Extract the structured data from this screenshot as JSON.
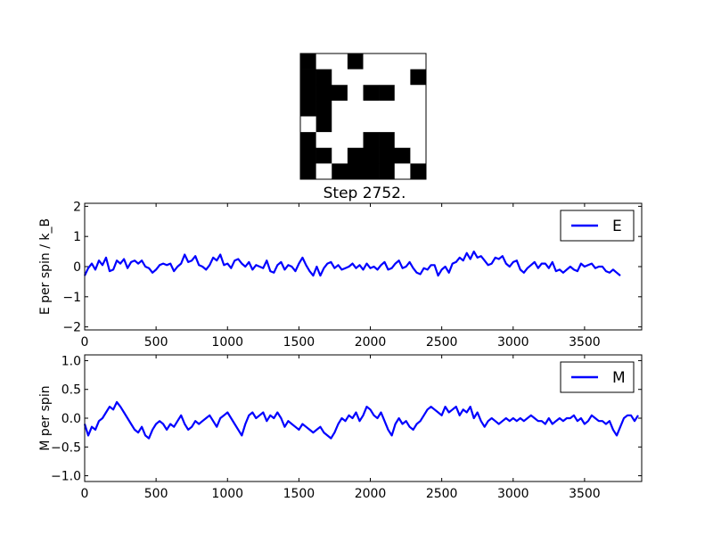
{
  "title": "Step 2752.",
  "spin_grid": {
    "rows": 8,
    "cols": 8,
    "colors": {
      "up": "#ffffff",
      "down": "#000000"
    },
    "cells": [
      [
        1,
        0,
        0,
        1,
        0,
        0,
        0,
        0
      ],
      [
        1,
        1,
        0,
        0,
        0,
        0,
        0,
        1
      ],
      [
        1,
        1,
        1,
        0,
        1,
        1,
        0,
        0
      ],
      [
        1,
        1,
        0,
        0,
        0,
        0,
        0,
        0
      ],
      [
        0,
        1,
        0,
        0,
        0,
        0,
        0,
        0
      ],
      [
        1,
        0,
        0,
        0,
        1,
        1,
        0,
        0
      ],
      [
        1,
        1,
        0,
        1,
        1,
        1,
        1,
        0
      ],
      [
        1,
        0,
        1,
        1,
        1,
        1,
        0,
        1
      ]
    ]
  },
  "chart_data": [
    {
      "type": "line",
      "ylabel": "E per spin / k_B",
      "xlim": [
        0,
        3900
      ],
      "ylim": [
        -2.1,
        2.1
      ],
      "xticks": [
        "0",
        "500",
        "1000",
        "1500",
        "2000",
        "2500",
        "3000",
        "3500"
      ],
      "yticks": [
        "−2",
        "−1",
        "0",
        "1",
        "2"
      ],
      "legend_position": "top-right",
      "series": [
        {
          "name": "E",
          "color": "#0000ff",
          "x_step": 25,
          "values": [
            -0.3,
            -0.05,
            0.1,
            -0.1,
            0.2,
            0.05,
            0.3,
            -0.15,
            -0.1,
            0.2,
            0.1,
            0.25,
            -0.05,
            0.15,
            0.2,
            0.1,
            0.2,
            0.0,
            -0.05,
            -0.2,
            -0.1,
            0.05,
            0.1,
            0.05,
            0.1,
            -0.15,
            0.0,
            0.1,
            0.4,
            0.15,
            0.2,
            0.35,
            0.05,
            0.0,
            -0.1,
            0.05,
            0.3,
            0.2,
            0.4,
            0.05,
            0.1,
            -0.05,
            0.2,
            0.25,
            0.1,
            0.0,
            0.15,
            -0.1,
            0.05,
            0.0,
            -0.05,
            0.2,
            -0.15,
            -0.2,
            0.05,
            0.15,
            -0.1,
            0.05,
            0.0,
            -0.15,
            0.1,
            0.3,
            0.05,
            -0.15,
            -0.3,
            0.0,
            -0.3,
            -0.05,
            0.1,
            0.15,
            -0.05,
            0.05,
            -0.1,
            -0.05,
            0.0,
            0.1,
            -0.05,
            0.05,
            -0.1,
            0.1,
            -0.05,
            0.0,
            -0.1,
            0.05,
            0.15,
            -0.1,
            -0.05,
            0.1,
            0.2,
            -0.05,
            0.0,
            0.15,
            -0.05,
            -0.2,
            -0.25,
            -0.05,
            -0.1,
            0.05,
            0.05,
            -0.3,
            -0.1,
            0.0,
            -0.2,
            0.1,
            0.15,
            0.3,
            0.2,
            0.45,
            0.25,
            0.5,
            0.3,
            0.35,
            0.2,
            0.05,
            0.1,
            0.3,
            0.25,
            0.35,
            0.1,
            0.0,
            0.15,
            0.2,
            -0.1,
            -0.2,
            -0.05,
            0.05,
            0.15,
            -0.05,
            0.1,
            0.1,
            -0.05,
            0.15,
            -0.15,
            -0.1,
            -0.2,
            -0.1,
            0.0,
            -0.1,
            -0.15,
            0.1,
            0.0,
            0.05,
            0.1,
            -0.05,
            0.0,
            0.0,
            -0.15,
            -0.2,
            -0.1,
            -0.2,
            -0.3
          ]
        }
      ]
    },
    {
      "type": "line",
      "ylabel": "M per spin",
      "xlim": [
        0,
        3900
      ],
      "ylim": [
        -1.1,
        1.1
      ],
      "xticks": [
        "0",
        "500",
        "1000",
        "1500",
        "2000",
        "2500",
        "3000",
        "3500"
      ],
      "yticks": [
        "−1.0",
        "−0.5",
        "0.0",
        "0.5",
        "1.0"
      ],
      "legend_position": "top-right",
      "series": [
        {
          "name": "M",
          "color": "#0000ff",
          "x_step": 25,
          "values": [
            -0.1,
            -0.3,
            -0.15,
            -0.2,
            -0.05,
            0.0,
            0.1,
            0.2,
            0.15,
            0.28,
            0.2,
            0.1,
            0.0,
            -0.1,
            -0.2,
            -0.25,
            -0.15,
            -0.3,
            -0.35,
            -0.2,
            -0.1,
            -0.05,
            -0.1,
            -0.2,
            -0.1,
            -0.15,
            -0.05,
            0.05,
            -0.1,
            -0.2,
            -0.15,
            -0.05,
            -0.1,
            -0.05,
            0.0,
            0.05,
            -0.05,
            -0.15,
            0.0,
            0.05,
            0.1,
            0.0,
            -0.1,
            -0.2,
            -0.3,
            -0.1,
            0.05,
            0.1,
            0.0,
            0.05,
            0.1,
            -0.05,
            0.05,
            0.0,
            0.1,
            0.0,
            -0.15,
            -0.05,
            -0.1,
            -0.15,
            -0.2,
            -0.1,
            -0.15,
            -0.2,
            -0.25,
            -0.2,
            -0.15,
            -0.25,
            -0.3,
            -0.35,
            -0.25,
            -0.1,
            0.0,
            -0.05,
            0.05,
            0.0,
            0.1,
            -0.05,
            0.05,
            0.2,
            0.15,
            0.05,
            0.0,
            0.1,
            -0.05,
            -0.2,
            -0.3,
            -0.1,
            0.0,
            -0.1,
            -0.05,
            -0.15,
            -0.2,
            -0.1,
            -0.05,
            0.05,
            0.15,
            0.2,
            0.15,
            0.1,
            0.05,
            0.2,
            0.1,
            0.15,
            0.2,
            0.05,
            0.15,
            0.1,
            0.2,
            0.0,
            0.1,
            -0.05,
            -0.15,
            -0.05,
            0.0,
            -0.05,
            -0.1,
            -0.05,
            0.0,
            -0.05,
            0.0,
            -0.05,
            0.0,
            -0.05,
            0.0,
            0.05,
            0.0,
            -0.05,
            -0.05,
            -0.1,
            0.0,
            -0.1,
            -0.05,
            0.0,
            -0.05,
            0.0,
            0.0,
            0.05,
            -0.05,
            0.0,
            -0.1,
            -0.05,
            0.05,
            0.0,
            -0.05,
            -0.05,
            -0.1,
            -0.05,
            -0.2,
            -0.3,
            -0.15,
            0.0,
            0.05,
            0.05,
            -0.05,
            0.05
          ]
        }
      ]
    }
  ]
}
